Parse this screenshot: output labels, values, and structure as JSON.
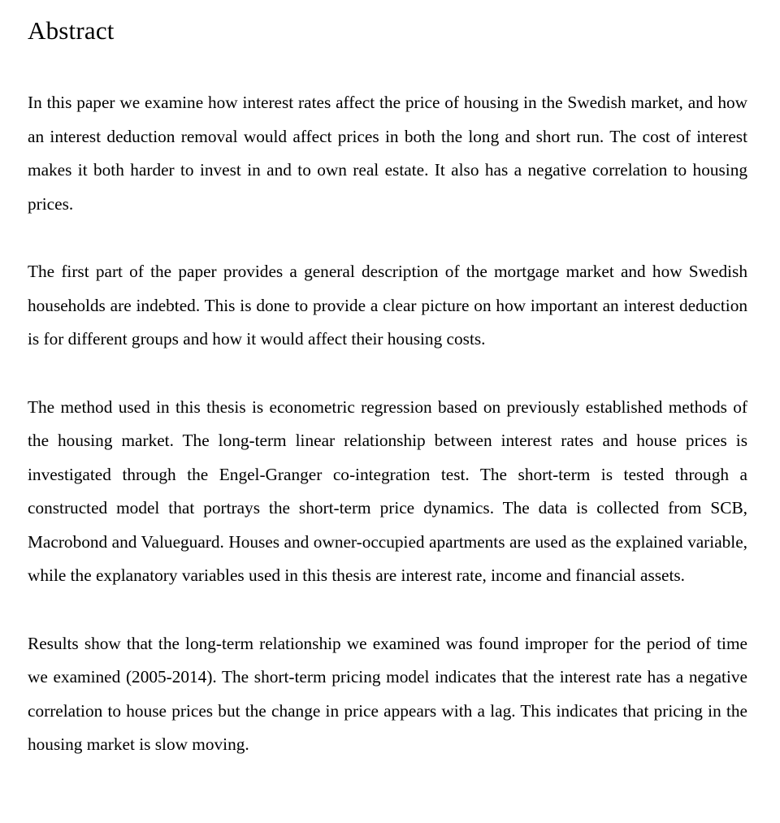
{
  "heading": "Abstract",
  "typography": {
    "font_family": "Times New Roman, serif",
    "heading_fontsize_pt": 24,
    "body_fontsize_pt": 16,
    "line_height": 1.95,
    "text_color": "#000000",
    "background_color": "#ffffff",
    "justify": true
  },
  "paragraphs": [
    "In this paper we examine how interest rates affect the price of housing in the Swedish market, and how an interest deduction removal would affect prices in both the long and short run. The cost of interest makes it both harder to invest in and to own real estate. It also has a negative correlation to housing prices.",
    "The first part of the paper provides a general description of the mortgage market and how Swedish households are indebted. This is done to provide a clear picture on how important an interest deduction is for different groups and how it would affect their housing costs.",
    "The method used in this thesis is econometric regression based on previously established methods of the housing market. The long-term linear relationship between interest rates and house prices is investigated through the Engel-Granger co-integration test. The short-term is tested through a constructed model that portrays the short-term price dynamics. The data is collected from SCB, Macrobond and Valueguard. Houses and owner-occupied apartments are used as the explained variable, while the explanatory variables used in this thesis are interest rate, income and financial assets.",
    "Results show that the long-term relationship we examined was found improper for the period of time we examined (2005-2014). The short-term pricing model indicates that the interest rate has a negative correlation to house prices but the change in price appears with a lag. This indicates that pricing in the housing market is slow moving."
  ]
}
